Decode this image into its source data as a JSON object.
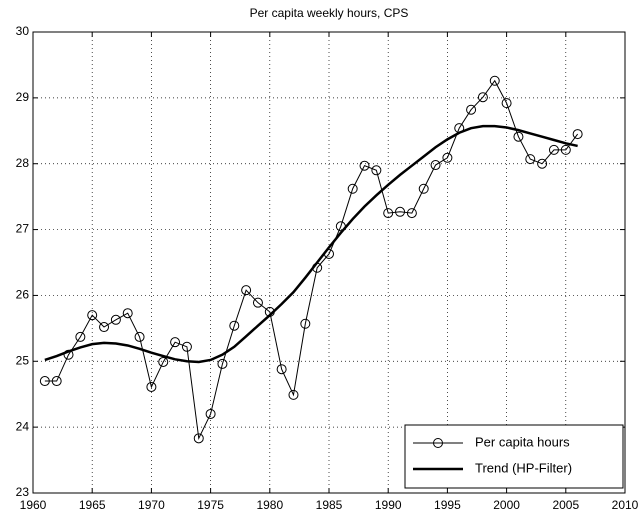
{
  "chart_data": {
    "type": "line",
    "title": "Per capita weekly hours, CPS",
    "x": [
      1961,
      1962,
      1963,
      1964,
      1965,
      1966,
      1967,
      1968,
      1969,
      1970,
      1971,
      1972,
      1973,
      1974,
      1975,
      1976,
      1977,
      1978,
      1979,
      1980,
      1981,
      1982,
      1983,
      1984,
      1985,
      1986,
      1987,
      1988,
      1989,
      1990,
      1991,
      1992,
      1993,
      1994,
      1995,
      1996,
      1997,
      1998,
      1999,
      2000,
      2001,
      2002,
      2003,
      2004,
      2005,
      2006
    ],
    "series": [
      {
        "name": "Per capita hours",
        "color": "#000000",
        "marker": "o",
        "values": [
          24.7,
          24.7,
          25.1,
          25.37,
          25.7,
          25.52,
          25.63,
          25.73,
          25.37,
          24.61,
          24.99,
          25.29,
          25.22,
          23.83,
          24.2,
          24.96,
          25.54,
          26.08,
          25.89,
          25.75,
          24.88,
          24.49,
          25.57,
          26.42,
          26.63,
          27.05,
          27.62,
          27.97,
          27.9,
          27.25,
          27.27,
          27.25,
          27.62,
          27.98,
          28.09,
          28.54,
          28.82,
          29.01,
          29.26,
          28.92,
          28.41,
          28.07,
          28.0,
          28.21,
          28.21,
          28.45
        ]
      },
      {
        "name": "Trend (HP-Filter)",
        "color": "#000000",
        "values": [
          25.02,
          25.08,
          25.15,
          25.21,
          25.26,
          25.28,
          25.27,
          25.24,
          25.19,
          25.13,
          25.08,
          25.03,
          25.0,
          24.99,
          25.02,
          25.1,
          25.22,
          25.38,
          25.54,
          25.7,
          25.87,
          26.05,
          26.27,
          26.5,
          26.73,
          26.95,
          27.16,
          27.35,
          27.52,
          27.68,
          27.83,
          27.97,
          28.11,
          28.25,
          28.37,
          28.47,
          28.54,
          28.57,
          28.57,
          28.55,
          28.51,
          28.46,
          28.41,
          28.36,
          28.31,
          28.27
        ]
      }
    ],
    "xlim": [
      1960,
      2010
    ],
    "xticks": [
      1960,
      1965,
      1970,
      1975,
      1980,
      1985,
      1990,
      1995,
      2000,
      2005,
      2010
    ],
    "ylim": [
      23,
      30
    ],
    "yticks": [
      23,
      24,
      25,
      26,
      27,
      28,
      29,
      30
    ],
    "grid": true,
    "legend": "lower right"
  }
}
